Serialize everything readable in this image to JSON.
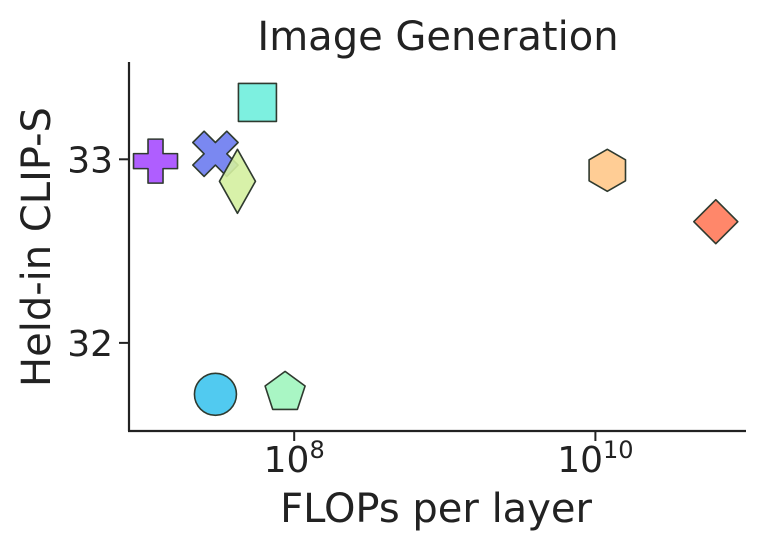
{
  "chart_data": {
    "type": "scatter",
    "title": "Image Generation",
    "xlabel": "FLOPs per layer",
    "ylabel": "Held-in CLIP-S",
    "x_scale": "log",
    "xlim": [
      8000000,
      100000000000
    ],
    "ylim": [
      31.52,
      33.53
    ],
    "x_ticks": [
      {
        "value": 100000000,
        "base": "10",
        "exp": "8"
      },
      {
        "value": 10000000000,
        "base": "10",
        "exp": "10"
      }
    ],
    "y_ticks": [
      {
        "value": 32,
        "label": "32"
      },
      {
        "value": 33,
        "label": "33"
      }
    ],
    "grid": false,
    "legend": "none",
    "points": [
      {
        "x": 12000000,
        "y": 32.99,
        "marker": "plus",
        "color": "#A64DFF"
      },
      {
        "x": 30000000,
        "y": 33.03,
        "marker": "x",
        "color": "#6B7BEF"
      },
      {
        "x": 42000000,
        "y": 32.88,
        "marker": "thin-diamond",
        "color": "#D4F0A0"
      },
      {
        "x": 57000000,
        "y": 33.31,
        "marker": "square",
        "color": "#6FEEDD"
      },
      {
        "x": 30000000,
        "y": 31.72,
        "marker": "circle",
        "color": "#3EC4EE"
      },
      {
        "x": 87000000,
        "y": 31.73,
        "marker": "pentagon",
        "color": "#A0F5BE"
      },
      {
        "x": 12000000000,
        "y": 32.94,
        "marker": "hexagon",
        "color": "#FFC88A"
      },
      {
        "x": 63000000000,
        "y": 32.66,
        "marker": "diamond",
        "color": "#FF7A5A"
      }
    ]
  }
}
